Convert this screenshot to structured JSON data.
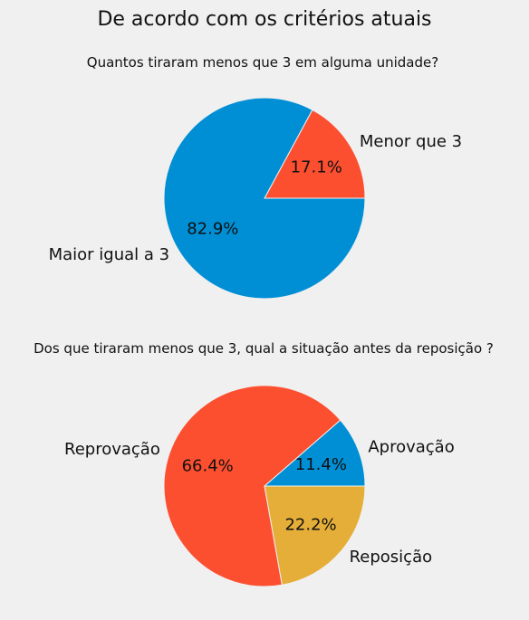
{
  "figure": {
    "suptitle": "De acordo com os critérios atuais"
  },
  "chart_data": [
    {
      "type": "pie",
      "title": "Quantos tiraram menos que 3 em alguma unidade?",
      "start_angle": 0,
      "direction": "counterclockwise",
      "slices": [
        {
          "label": "Menor que 3",
          "value": 17.1,
          "pct_label": "17.1%",
          "color": "#fc4f30"
        },
        {
          "label": "Maior igual a 3",
          "value": 82.9,
          "pct_label": "82.9%",
          "color": "#008fd5"
        }
      ]
    },
    {
      "type": "pie",
      "title": "Dos que tiraram menos que 3, qual a situação antes da reposição ?",
      "start_angle": 0,
      "direction": "counterclockwise",
      "slices": [
        {
          "label": "Aprovação",
          "value": 11.4,
          "pct_label": "11.4%",
          "color": "#008fd5"
        },
        {
          "label": "Reprovação",
          "value": 66.4,
          "pct_label": "66.4%",
          "color": "#fc4f30"
        },
        {
          "label": "Reposição",
          "value": 22.2,
          "pct_label": "22.2%",
          "color": "#e5ae38"
        }
      ]
    }
  ]
}
